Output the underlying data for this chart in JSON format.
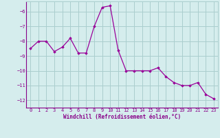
{
  "x": [
    0,
    1,
    2,
    3,
    4,
    5,
    6,
    7,
    8,
    9,
    10,
    11,
    12,
    13,
    14,
    15,
    16,
    17,
    18,
    19,
    20,
    21,
    22,
    23
  ],
  "y": [
    -8.5,
    -8.0,
    -8.0,
    -8.7,
    -8.4,
    -7.8,
    -8.8,
    -8.8,
    -7.0,
    -5.7,
    -5.6,
    -8.6,
    -10.0,
    -10.0,
    -10.0,
    -10.0,
    -9.8,
    -10.4,
    -10.8,
    -11.0,
    -11.0,
    -10.8,
    -11.6,
    -11.9
  ],
  "line_color": "#990099",
  "marker_color": "#990099",
  "bg_color": "#d5eded",
  "grid_color": "#aacece",
  "xlabel": "Windchill (Refroidissement éolien,°C)",
  "ylim": [
    -12.5,
    -5.3
  ],
  "xlim": [
    -0.5,
    23.5
  ],
  "yticks": [
    -12,
    -11,
    -10,
    -9,
    -8,
    -7,
    -6
  ],
  "xticks": [
    0,
    1,
    2,
    3,
    4,
    5,
    6,
    7,
    8,
    9,
    10,
    11,
    12,
    13,
    14,
    15,
    16,
    17,
    18,
    19,
    20,
    21,
    22,
    23
  ],
  "font_color": "#880088",
  "tick_fontsize": 5.0,
  "xlabel_fontsize": 5.5
}
